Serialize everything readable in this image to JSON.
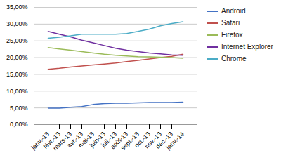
{
  "chart_data": {
    "type": "line",
    "categories": [
      "janv.-13",
      "févr.-13",
      "mars-13",
      "avr.-13",
      "mai-13",
      "juin-13",
      "juil.-13",
      "août-13",
      "sept.-13",
      "oct.-13",
      "nov.-13",
      "déc.-13",
      "janv.-14"
    ],
    "series": [
      {
        "name": "Android",
        "color": "#4472C4",
        "values": [
          0.0495,
          0.049,
          0.052,
          0.054,
          0.06,
          0.063,
          0.064,
          0.064,
          0.065,
          0.066,
          0.066,
          0.066,
          0.067
        ]
      },
      {
        "name": "Safari",
        "color": "#C0504D",
        "values": [
          0.165,
          0.168,
          0.172,
          0.175,
          0.178,
          0.181,
          0.184,
          0.188,
          0.192,
          0.196,
          0.2,
          0.204,
          0.21
        ]
      },
      {
        "name": "Firefox",
        "color": "#9BBB59",
        "values": [
          0.23,
          0.226,
          0.222,
          0.218,
          0.214,
          0.21,
          0.207,
          0.205,
          0.203,
          0.202,
          0.201,
          0.2,
          0.198
        ]
      },
      {
        "name": "Internet Explorer",
        "color": "#7030A0",
        "values": [
          0.278,
          0.27,
          0.262,
          0.252,
          0.244,
          0.236,
          0.228,
          0.222,
          0.218,
          0.214,
          0.211,
          0.208,
          0.207
        ]
      },
      {
        "name": "Chrome",
        "color": "#4BACC6",
        "values": [
          0.258,
          0.261,
          0.265,
          0.27,
          0.27,
          0.27,
          0.27,
          0.272,
          0.278,
          0.285,
          0.295,
          0.302,
          0.307
        ]
      }
    ],
    "ylim": [
      0.0,
      0.35
    ],
    "yticks": [
      {
        "value": 0.0,
        "label": "0,00%"
      },
      {
        "value": 0.05,
        "label": "5,00%"
      },
      {
        "value": 0.1,
        "label": "10,00%"
      },
      {
        "value": 0.15,
        "label": "15,00%"
      },
      {
        "value": 0.2,
        "label": "20,00%"
      },
      {
        "value": 0.25,
        "label": "25,00%"
      },
      {
        "value": 0.3,
        "label": "30,00%"
      },
      {
        "value": 0.35,
        "label": "35,00%"
      }
    ],
    "grid": true,
    "legend": "right"
  }
}
